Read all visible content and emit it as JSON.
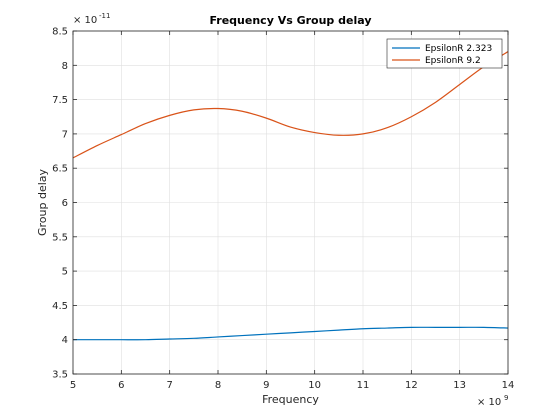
{
  "chart_data": {
    "type": "line",
    "title": "Frequency Vs Group delay",
    "xlabel": "Frequency",
    "ylabel": "Group delay",
    "x_exponent_base": "× 10",
    "x_exponent_power": "9",
    "y_exponent_base": "× 10",
    "y_exponent_power": "-11",
    "xlim": [
      5,
      14
    ],
    "ylim": [
      3.5,
      8.5
    ],
    "x_ticks": [
      5,
      6,
      7,
      8,
      9,
      10,
      11,
      12,
      13,
      14
    ],
    "x_tick_labels": [
      "5",
      "6",
      "7",
      "8",
      "9",
      "10",
      "11",
      "12",
      "13",
      "14"
    ],
    "y_ticks": [
      3.5,
      4,
      4.5,
      5,
      5.5,
      6,
      6.5,
      7,
      7.5,
      8,
      8.5
    ],
    "y_tick_labels": [
      "3.5",
      "4",
      "4.5",
      "5",
      "5.5",
      "6",
      "6.5",
      "7",
      "7.5",
      "8",
      "8.5"
    ],
    "grid": true,
    "legend_position": "top-right",
    "series": [
      {
        "name": "EpsilonR 2.323",
        "color": "#0072bd",
        "x": [
          5,
          5.5,
          6,
          6.5,
          7,
          7.5,
          8,
          8.5,
          9,
          9.5,
          10,
          10.5,
          11,
          11.5,
          12,
          12.5,
          13,
          13.5,
          14
        ],
        "y": [
          4.0,
          4.0,
          4.0,
          4.0,
          4.01,
          4.02,
          4.04,
          4.06,
          4.08,
          4.1,
          4.12,
          4.14,
          4.16,
          4.17,
          4.18,
          4.18,
          4.18,
          4.18,
          4.17
        ]
      },
      {
        "name": "EpsilonR 9.2",
        "color": "#d95319",
        "x": [
          5,
          5.5,
          6,
          6.5,
          7,
          7.5,
          8,
          8.5,
          9,
          9.5,
          10,
          10.5,
          11,
          11.5,
          12,
          12.5,
          13,
          13.5,
          14
        ],
        "y": [
          6.65,
          6.83,
          6.99,
          7.15,
          7.27,
          7.35,
          7.37,
          7.33,
          7.23,
          7.1,
          7.02,
          6.98,
          7.0,
          7.09,
          7.25,
          7.46,
          7.72,
          7.98,
          8.2
        ]
      }
    ]
  }
}
